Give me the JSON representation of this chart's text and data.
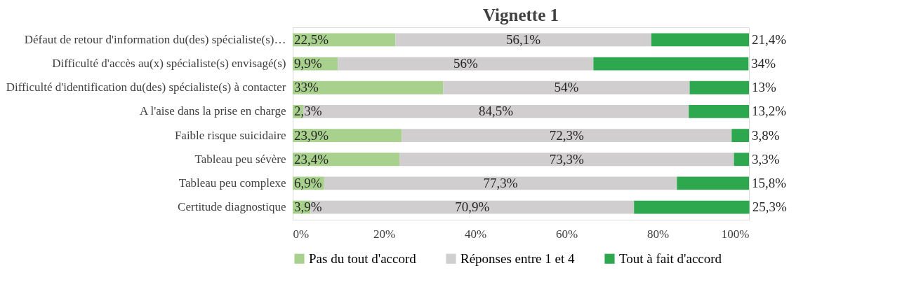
{
  "chart_data": {
    "type": "bar",
    "orientation": "horizontal",
    "stacked": true,
    "title": "Vignette 1",
    "categories": [
      "Défaut de retour d'information du(des) spécialiste(s)…",
      "Difficulté d'accès au(x) spécialiste(s) envisagé(s)",
      "Difficulté d'identification du(des) spécialiste(s) à contacter",
      "A l'aise dans la prise en charge",
      "Faible risque suicidaire",
      "Tableau peu sévère",
      "Tableau peu complexe",
      "Certitude diagnostique"
    ],
    "series": [
      {
        "name": "Pas du tout d'accord",
        "color": "#a9d18e",
        "values": [
          22.5,
          9.9,
          33,
          2.3,
          23.9,
          23.4,
          6.9,
          3.9
        ],
        "value_labels": [
          "22,5%",
          "9,9%",
          "33%",
          "2,3%",
          "23,9%",
          "23,4%",
          "6,9%",
          "3,9%"
        ]
      },
      {
        "name": "Réponses entre 1 et 4",
        "color": "#d0cece",
        "values": [
          56.1,
          56,
          54,
          84.5,
          72.3,
          73.3,
          77.3,
          70.9
        ],
        "value_labels": [
          "56,1%",
          "56%",
          "54%",
          "84,5%",
          "72,3%",
          "73,3%",
          "77,3%",
          "70,9%"
        ]
      },
      {
        "name": "Tout à fait d'accord",
        "color": "#2ea84e",
        "values": [
          21.4,
          34,
          13,
          13.2,
          3.8,
          3.3,
          15.8,
          25.3
        ],
        "value_labels": [
          "21,4%",
          "34%",
          "13%",
          "13,2%",
          "3,8%",
          "3,3%",
          "15,8%",
          "25,3%"
        ]
      }
    ],
    "xlim": [
      0,
      100
    ],
    "xticks": [
      {
        "value": 0,
        "label": "0%"
      },
      {
        "value": 20,
        "label": "20%"
      },
      {
        "value": 40,
        "label": "40%"
      },
      {
        "value": 60,
        "label": "60%"
      },
      {
        "value": 80,
        "label": "80%"
      },
      {
        "value": 100,
        "label": "100%"
      }
    ],
    "grid": false,
    "legend": "bottom"
  }
}
